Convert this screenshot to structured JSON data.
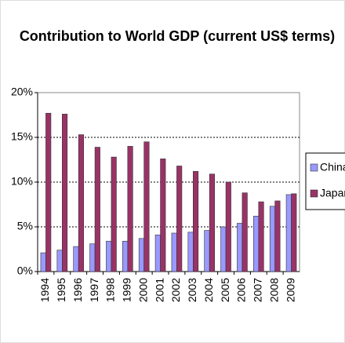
{
  "chart_data": {
    "type": "bar",
    "title": "Contribution to World GDP (current US$ terms)",
    "categories": [
      "1994",
      "1995",
      "1996",
      "1997",
      "1998",
      "1999",
      "2000",
      "2001",
      "2002",
      "2003",
      "2004",
      "2005",
      "2006",
      "2007",
      "2008",
      "2009"
    ],
    "series": [
      {
        "name": "China",
        "color": "#9999ff",
        "values": [
          2.1,
          2.4,
          2.8,
          3.1,
          3.4,
          3.4,
          3.7,
          4.1,
          4.3,
          4.4,
          4.6,
          5.0,
          5.4,
          6.2,
          7.3,
          8.6
        ]
      },
      {
        "name": "Japan",
        "color": "#993366",
        "values": [
          17.7,
          17.6,
          15.3,
          13.9,
          12.8,
          14.0,
          14.5,
          12.6,
          11.8,
          11.2,
          10.9,
          10.0,
          8.8,
          7.8,
          7.9,
          8.7
        ]
      }
    ],
    "ylim": [
      0,
      20
    ],
    "yticks": [
      {
        "value": 0,
        "label": "0%"
      },
      {
        "value": 5,
        "label": "5%"
      },
      {
        "value": 10,
        "label": "10%"
      },
      {
        "value": 15,
        "label": "15%"
      },
      {
        "value": 20,
        "label": "20%"
      }
    ],
    "grid": true,
    "legend": "right"
  }
}
